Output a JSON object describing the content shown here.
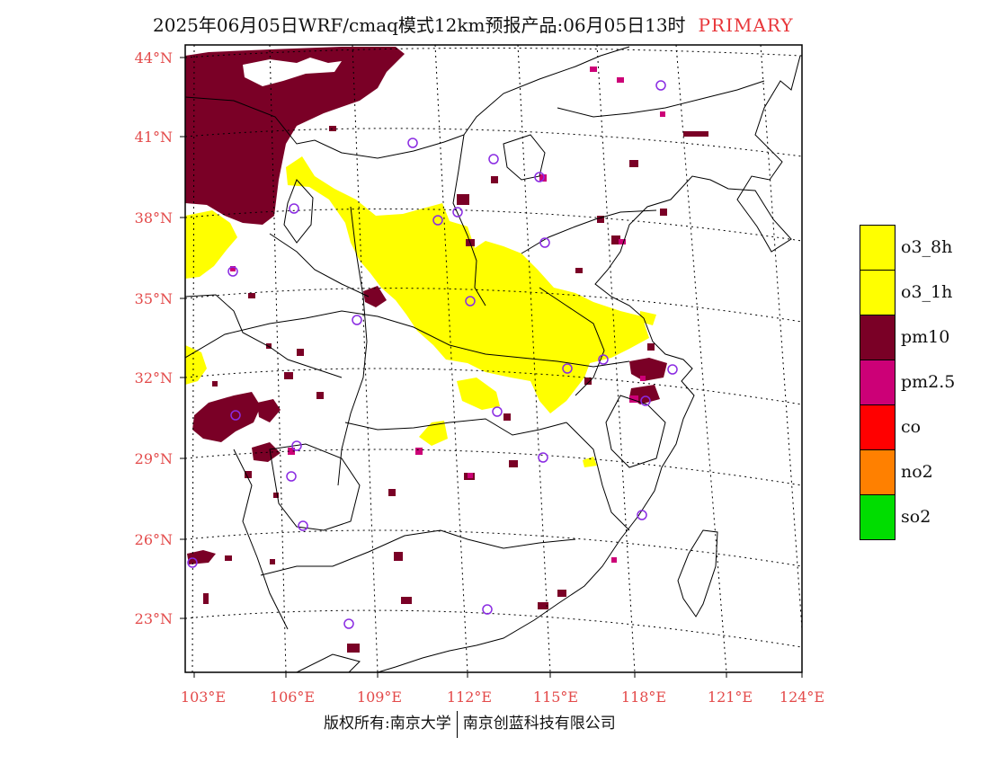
{
  "title": {
    "text": "2025年06月05日WRF/cmaq模式12km预报产品:06月05日13时",
    "tag": "PRIMARY",
    "tag_color": "#e8363a"
  },
  "axes": {
    "lat_labels": [
      "44°N",
      "41°N",
      "38°N",
      "35°N",
      "32°N",
      "29°N",
      "26°N",
      "23°N"
    ],
    "lon_labels": [
      "103°E",
      "106°E",
      "109°E",
      "112°E",
      "115°E",
      "118°E",
      "121°E",
      "124°E"
    ],
    "label_color": "#e34a4a"
  },
  "legend": {
    "items": [
      {
        "label": "o3_8h",
        "color": "#ffff00"
      },
      {
        "label": "o3_1h",
        "color": "#ffff00"
      },
      {
        "label": "pm10",
        "color": "#7a0026"
      },
      {
        "label": "pm2.5",
        "color": "#cc0077"
      },
      {
        "label": "co",
        "color": "#ff0000"
      },
      {
        "label": "no2",
        "color": "#ff8000"
      },
      {
        "label": "so2",
        "color": "#00dd00"
      }
    ]
  },
  "footer": {
    "left": "版权所有:南京大学",
    "right": "南京创蓝科技有限公司"
  },
  "map_colors": {
    "pm10": "#7a0026",
    "o3": "#ffff00",
    "pm25": "#cc0077",
    "station": "#8a2be2"
  }
}
